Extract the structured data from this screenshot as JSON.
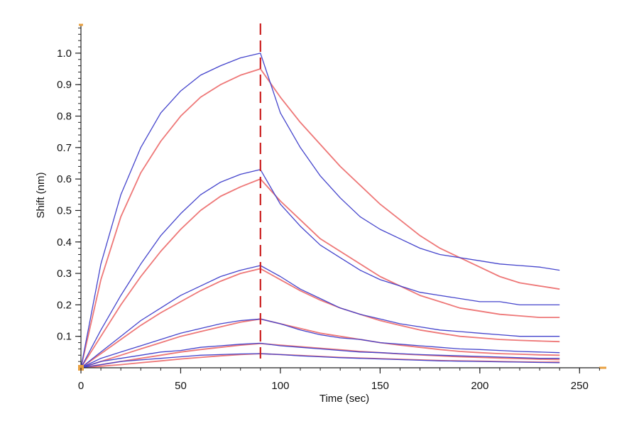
{
  "chart_data": {
    "type": "line",
    "xlabel": "Time (sec)",
    "ylabel": "Shift (nm)",
    "xlim": [
      0,
      262
    ],
    "ylim": [
      0,
      1.09
    ],
    "x_ticks": [
      0,
      50,
      100,
      150,
      200,
      250
    ],
    "x_tick_labels": [
      "0",
      "50",
      "100",
      "150",
      "200",
      "250"
    ],
    "y_ticks": [
      0.1,
      0.2,
      0.3,
      0.4,
      0.5,
      0.6,
      0.7,
      0.8,
      0.9,
      1.0
    ],
    "y_tick_labels": [
      "0.1",
      "0.2",
      "0.3",
      "0.4",
      "0.5",
      "0.6",
      "0.7",
      "0.8",
      "0.9",
      "1.0"
    ],
    "grid": false,
    "legend": "none",
    "association_end_marker": {
      "x": 90,
      "style": "dashed",
      "color": "#cc2222"
    },
    "colors": {
      "measured": "#4444cc",
      "fitted": "#ee7777",
      "axis": "#222222",
      "axis_end_caps": "#e8a040"
    },
    "x": [
      0,
      10,
      20,
      30,
      40,
      50,
      60,
      70,
      80,
      90,
      100,
      110,
      120,
      130,
      140,
      150,
      160,
      170,
      180,
      190,
      200,
      210,
      220,
      230,
      240
    ],
    "series": [
      {
        "kind": "measured",
        "values": [
          0,
          0.33,
          0.55,
          0.7,
          0.81,
          0.88,
          0.93,
          0.96,
          0.985,
          1.0,
          0.81,
          0.7,
          0.61,
          0.54,
          0.48,
          0.44,
          0.41,
          0.38,
          0.36,
          0.35,
          0.34,
          0.33,
          0.325,
          0.32,
          0.31
        ]
      },
      {
        "kind": "fitted",
        "values": [
          0,
          0.28,
          0.48,
          0.62,
          0.72,
          0.8,
          0.86,
          0.9,
          0.93,
          0.95,
          0.86,
          0.78,
          0.71,
          0.64,
          0.58,
          0.52,
          0.47,
          0.42,
          0.38,
          0.35,
          0.32,
          0.29,
          0.27,
          0.26,
          0.25
        ]
      },
      {
        "kind": "measured",
        "values": [
          0,
          0.12,
          0.23,
          0.33,
          0.42,
          0.49,
          0.55,
          0.59,
          0.615,
          0.63,
          0.52,
          0.45,
          0.39,
          0.35,
          0.31,
          0.28,
          0.26,
          0.24,
          0.23,
          0.22,
          0.21,
          0.21,
          0.2,
          0.2,
          0.2
        ]
      },
      {
        "kind": "fitted",
        "values": [
          0,
          0.1,
          0.2,
          0.29,
          0.37,
          0.44,
          0.5,
          0.545,
          0.575,
          0.6,
          0.53,
          0.47,
          0.41,
          0.37,
          0.33,
          0.29,
          0.26,
          0.23,
          0.21,
          0.19,
          0.18,
          0.17,
          0.165,
          0.16,
          0.16
        ]
      },
      {
        "kind": "measured",
        "values": [
          0,
          0.05,
          0.1,
          0.15,
          0.19,
          0.23,
          0.26,
          0.29,
          0.31,
          0.325,
          0.29,
          0.25,
          0.22,
          0.19,
          0.17,
          0.155,
          0.14,
          0.13,
          0.12,
          0.115,
          0.11,
          0.105,
          0.1,
          0.1,
          0.1
        ]
      },
      {
        "kind": "fitted",
        "values": [
          0,
          0.045,
          0.09,
          0.135,
          0.175,
          0.21,
          0.245,
          0.275,
          0.3,
          0.315,
          0.28,
          0.245,
          0.215,
          0.19,
          0.17,
          0.15,
          0.135,
          0.12,
          0.11,
          0.1,
          0.095,
          0.09,
          0.087,
          0.085,
          0.083
        ]
      },
      {
        "kind": "measured",
        "values": [
          0,
          0.03,
          0.05,
          0.07,
          0.09,
          0.11,
          0.125,
          0.14,
          0.15,
          0.155,
          0.14,
          0.12,
          0.105,
          0.095,
          0.09,
          0.08,
          0.075,
          0.07,
          0.065,
          0.06,
          0.058,
          0.055,
          0.052,
          0.05,
          0.048
        ]
      },
      {
        "kind": "fitted",
        "values": [
          0,
          0.02,
          0.04,
          0.06,
          0.08,
          0.1,
          0.115,
          0.13,
          0.145,
          0.155,
          0.14,
          0.125,
          0.11,
          0.1,
          0.09,
          0.08,
          0.072,
          0.065,
          0.058,
          0.052,
          0.048,
          0.045,
          0.043,
          0.041,
          0.04
        ]
      },
      {
        "kind": "measured",
        "values": [
          0,
          0.02,
          0.03,
          0.04,
          0.05,
          0.055,
          0.065,
          0.07,
          0.075,
          0.078,
          0.07,
          0.065,
          0.06,
          0.055,
          0.05,
          0.048,
          0.045,
          0.042,
          0.04,
          0.038,
          0.036,
          0.034,
          0.032,
          0.03,
          0.03
        ]
      },
      {
        "kind": "fitted",
        "values": [
          0,
          0.01,
          0.02,
          0.03,
          0.04,
          0.05,
          0.058,
          0.065,
          0.072,
          0.077,
          0.072,
          0.067,
          0.062,
          0.057,
          0.052,
          0.048,
          0.044,
          0.041,
          0.038,
          0.035,
          0.033,
          0.031,
          0.029,
          0.027,
          0.026
        ]
      },
      {
        "kind": "measured",
        "values": [
          0,
          0.01,
          0.02,
          0.025,
          0.03,
          0.035,
          0.04,
          0.042,
          0.044,
          0.045,
          0.042,
          0.038,
          0.035,
          0.032,
          0.03,
          0.028,
          0.026,
          0.024,
          0.022,
          0.021,
          0.02,
          0.019,
          0.018,
          0.017,
          0.016
        ]
      },
      {
        "kind": "fitted",
        "values": [
          0,
          0.005,
          0.01,
          0.016,
          0.022,
          0.028,
          0.033,
          0.038,
          0.042,
          0.045,
          0.042,
          0.039,
          0.036,
          0.033,
          0.031,
          0.029,
          0.027,
          0.025,
          0.023,
          0.022,
          0.021,
          0.02,
          0.019,
          0.018,
          0.018
        ]
      }
    ]
  }
}
